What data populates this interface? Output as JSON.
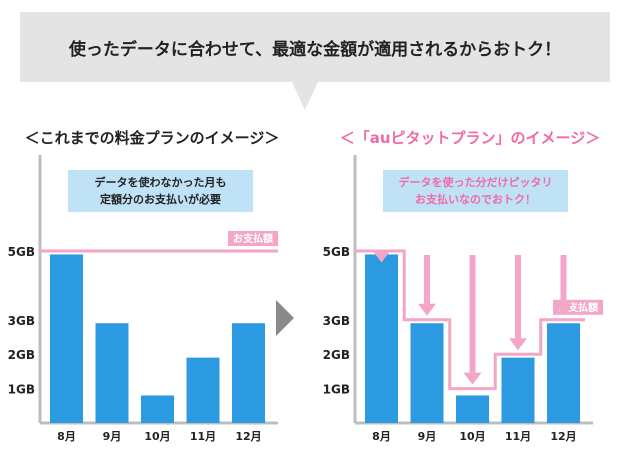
{
  "header": {
    "text": "使ったデータに合わせて、最適な金額が適用されるからおトク！"
  },
  "colors": {
    "bar": "#2b9ae0",
    "pink": "#f4a6c8",
    "header_bg": "#e4e4e4",
    "note_bg": "#bfe2f7",
    "frame": "#bdbdbd",
    "arrow_gray": "#8a8a8a"
  },
  "left_panel": {
    "title": "＜これまでの料金プランのイメージ＞",
    "note_lines": [
      "データを使わなかった月も",
      "定額分のお支払いが必要"
    ],
    "payment_label": "お支払額"
  },
  "right_panel": {
    "title": "＜「auピタットプラン」のイメージ＞",
    "note_lines": [
      "データを使った分だけピッタリ",
      "お支払いなのでおトク！"
    ],
    "payment_label": "お支払額"
  },
  "chart_data": [
    {
      "type": "bar",
      "categories": [
        "8月",
        "9月",
        "10月",
        "11月",
        "12月"
      ],
      "values": [
        4.9,
        2.9,
        0.8,
        1.9,
        2.9
      ],
      "yticks": [
        {
          "value": 5,
          "label": "5GB"
        },
        {
          "value": 3,
          "label": "3GB"
        },
        {
          "value": 2,
          "label": "2GB"
        },
        {
          "value": 1,
          "label": "1GB"
        }
      ],
      "ylim": [
        0,
        6
      ],
      "payment_line": [
        5,
        5,
        5,
        5,
        5
      ]
    },
    {
      "type": "bar",
      "categories": [
        "8月",
        "9月",
        "10月",
        "11月",
        "12月"
      ],
      "values": [
        4.9,
        2.9,
        0.8,
        1.9,
        2.9
      ],
      "yticks": [
        {
          "value": 5,
          "label": "5GB"
        },
        {
          "value": 3,
          "label": "3GB"
        },
        {
          "value": 2,
          "label": "2GB"
        },
        {
          "value": 1,
          "label": "1GB"
        }
      ],
      "ylim": [
        0,
        6
      ],
      "payment_line": [
        5,
        3,
        1,
        2,
        3
      ]
    }
  ]
}
